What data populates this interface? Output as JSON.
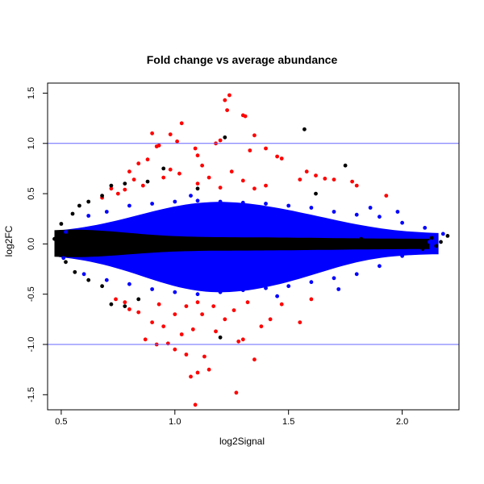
{
  "chart_data": {
    "type": "scatter",
    "title": "Fold change vs average abundance",
    "xlabel": "log2Signal",
    "ylabel": "log2FC",
    "xlim": [
      0.44,
      2.25
    ],
    "ylim": [
      -1.65,
      1.6
    ],
    "x_ticks": [
      0.5,
      1.0,
      1.5,
      2.0
    ],
    "x_tick_labels": [
      "0.5",
      "1.0",
      "1.5",
      "2.0"
    ],
    "y_ticks": [
      -1.5,
      -1.0,
      -0.5,
      0.0,
      0.5,
      1.0,
      1.5
    ],
    "y_tick_labels": [
      "-1.5",
      "-1.0",
      "-0.5",
      "0.0",
      "0.5",
      "1.0",
      "1.5"
    ],
    "grid": false,
    "reference_lines": [
      {
        "axis": "y",
        "value": 1.0,
        "color": "#6666ff"
      },
      {
        "axis": "y",
        "value": -1.0,
        "color": "#6666ff"
      }
    ],
    "colors": {
      "black": "#000000",
      "blue": "#0000ff",
      "red": "#ff0000"
    },
    "series": [
      {
        "color": "#ff0000",
        "points": [
          [
            1.24,
            1.48
          ],
          [
            1.22,
            1.43
          ],
          [
            1.3,
            1.28
          ],
          [
            1.31,
            1.27
          ],
          [
            1.23,
            1.33
          ],
          [
            1.03,
            1.2
          ],
          [
            0.98,
            1.09
          ],
          [
            1.01,
            1.02
          ],
          [
            0.9,
            1.1
          ],
          [
            0.93,
            0.98
          ],
          [
            0.92,
            0.97
          ],
          [
            1.18,
            1.0
          ],
          [
            1.2,
            1.03
          ],
          [
            1.35,
            1.08
          ],
          [
            1.4,
            0.95
          ],
          [
            1.33,
            0.93
          ],
          [
            1.09,
            0.95
          ],
          [
            1.1,
            0.88
          ],
          [
            0.88,
            0.84
          ],
          [
            0.84,
            0.8
          ],
          [
            1.45,
            0.87
          ],
          [
            1.47,
            0.85
          ],
          [
            1.12,
            0.78
          ],
          [
            1.25,
            0.72
          ],
          [
            0.98,
            0.74
          ],
          [
            1.02,
            0.7
          ],
          [
            0.8,
            0.72
          ],
          [
            0.82,
            0.64
          ],
          [
            1.58,
            0.72
          ],
          [
            1.62,
            0.68
          ],
          [
            1.66,
            0.65
          ],
          [
            1.7,
            0.64
          ],
          [
            1.78,
            0.62
          ],
          [
            1.8,
            0.58
          ],
          [
            1.55,
            0.64
          ],
          [
            0.95,
            0.66
          ],
          [
            1.15,
            0.66
          ],
          [
            1.3,
            0.63
          ],
          [
            0.72,
            0.55
          ],
          [
            0.75,
            0.5
          ],
          [
            0.78,
            0.54
          ],
          [
            0.86,
            0.58
          ],
          [
            1.4,
            0.58
          ],
          [
            1.93,
            0.48
          ],
          [
            0.68,
            0.46
          ],
          [
            1.1,
            0.6
          ],
          [
            1.2,
            0.56
          ],
          [
            1.35,
            0.55
          ],
          [
            1.09,
            -1.6
          ],
          [
            1.27,
            -1.48
          ],
          [
            1.07,
            -1.32
          ],
          [
            1.1,
            -1.28
          ],
          [
            1.15,
            -1.25
          ],
          [
            1.35,
            -1.15
          ],
          [
            1.28,
            -0.97
          ],
          [
            1.05,
            -1.1
          ],
          [
            1.13,
            -1.12
          ],
          [
            1.0,
            -1.05
          ],
          [
            0.97,
            -0.99
          ],
          [
            0.92,
            -1.0
          ],
          [
            0.87,
            -0.95
          ],
          [
            1.3,
            -0.95
          ],
          [
            1.03,
            -0.9
          ],
          [
            1.18,
            -0.87
          ],
          [
            1.08,
            -0.85
          ],
          [
            0.95,
            -0.82
          ],
          [
            1.38,
            -0.82
          ],
          [
            1.42,
            -0.75
          ],
          [
            1.55,
            -0.78
          ],
          [
            0.9,
            -0.78
          ],
          [
            1.22,
            -0.75
          ],
          [
            1.12,
            -0.7
          ],
          [
            1.0,
            -0.7
          ],
          [
            0.84,
            -0.68
          ],
          [
            0.8,
            -0.65
          ],
          [
            1.26,
            -0.66
          ],
          [
            1.05,
            -0.62
          ],
          [
            0.78,
            -0.58
          ],
          [
            0.93,
            -0.6
          ],
          [
            1.17,
            -0.62
          ],
          [
            1.32,
            -0.58
          ],
          [
            1.47,
            -0.6
          ],
          [
            0.74,
            -0.55
          ],
          [
            1.6,
            -0.55
          ],
          [
            1.1,
            -0.58
          ]
        ]
      },
      {
        "color": "#0000ff",
        "points": [
          [
            0.62,
            0.28
          ],
          [
            0.7,
            0.32
          ],
          [
            0.8,
            0.38
          ],
          [
            0.9,
            0.4
          ],
          [
            1.0,
            0.42
          ],
          [
            1.1,
            0.43
          ],
          [
            1.2,
            0.42
          ],
          [
            1.3,
            0.41
          ],
          [
            1.4,
            0.4
          ],
          [
            1.5,
            0.38
          ],
          [
            1.6,
            0.36
          ],
          [
            1.7,
            0.32
          ],
          [
            1.8,
            0.29
          ],
          [
            1.9,
            0.27
          ],
          [
            2.0,
            0.21
          ],
          [
            2.1,
            0.16
          ],
          [
            2.18,
            0.1
          ],
          [
            0.6,
            -0.3
          ],
          [
            0.7,
            -0.36
          ],
          [
            0.8,
            -0.4
          ],
          [
            0.9,
            -0.45
          ],
          [
            1.0,
            -0.48
          ],
          [
            1.1,
            -0.5
          ],
          [
            1.2,
            -0.48
          ],
          [
            1.3,
            -0.46
          ],
          [
            1.4,
            -0.44
          ],
          [
            1.5,
            -0.42
          ],
          [
            1.6,
            -0.38
          ],
          [
            1.7,
            -0.34
          ],
          [
            1.8,
            -0.3
          ],
          [
            1.9,
            -0.22
          ],
          [
            2.0,
            -0.12
          ],
          [
            0.52,
            0.12
          ],
          [
            0.51,
            -0.14
          ],
          [
            2.12,
            0.02
          ],
          [
            1.98,
            0.32
          ],
          [
            1.72,
            -0.45
          ],
          [
            1.45,
            -0.52
          ],
          [
            1.07,
            0.48
          ],
          [
            1.86,
            0.36
          ]
        ]
      },
      {
        "color": "#000000",
        "points": [
          [
            1.57,
            1.14
          ],
          [
            1.75,
            0.78
          ],
          [
            1.22,
            1.06
          ],
          [
            0.95,
            0.75
          ],
          [
            0.88,
            0.62
          ],
          [
            0.78,
            0.6
          ],
          [
            0.72,
            0.58
          ],
          [
            0.68,
            0.48
          ],
          [
            0.62,
            0.42
          ],
          [
            0.58,
            0.38
          ],
          [
            0.55,
            0.3
          ],
          [
            0.5,
            0.2
          ],
          [
            0.47,
            0.05
          ],
          [
            0.48,
            -0.06
          ],
          [
            0.52,
            -0.18
          ],
          [
            0.56,
            -0.28
          ],
          [
            0.62,
            -0.36
          ],
          [
            0.68,
            -0.42
          ],
          [
            0.72,
            -0.6
          ],
          [
            0.78,
            -0.62
          ],
          [
            0.84,
            -0.55
          ],
          [
            1.2,
            -0.93
          ],
          [
            2.17,
            0.02
          ],
          [
            2.2,
            0.08
          ],
          [
            2.13,
            0.06
          ],
          [
            2.09,
            -0.05
          ],
          [
            2.15,
            -0.02
          ],
          [
            1.82,
            0.05
          ],
          [
            1.62,
            0.5
          ],
          [
            1.1,
            0.55
          ]
        ]
      }
    ]
  }
}
